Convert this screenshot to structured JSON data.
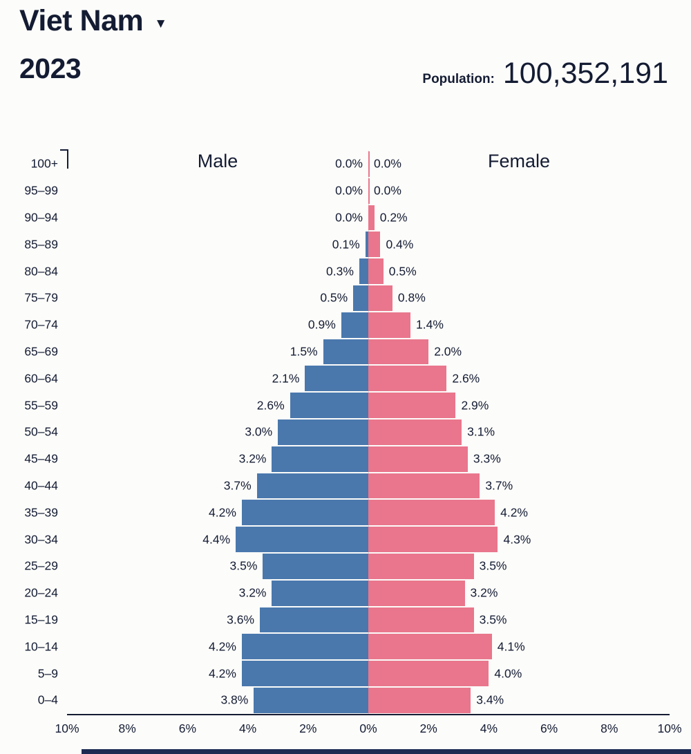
{
  "header": {
    "country": "Viet Nam",
    "dropdown_icon": "▼",
    "year": "2023",
    "population_label": "Population:",
    "population_value": "100,352,191"
  },
  "chart_data": {
    "type": "bar",
    "subtype": "population-pyramid",
    "title": "Viet Nam 2023",
    "male_header": "Male",
    "female_header": "Female",
    "legend_position": "column-headers",
    "grid": false,
    "colors": {
      "male": "#4a78ad",
      "female": "#e9768c",
      "text": "#141c33",
      "center_line": "#dcdcdc",
      "footer_bar": "#1d2b52",
      "background": "#fcfcfa"
    },
    "x_axis": {
      "unit": "%",
      "max_percent": 10,
      "ticks": [
        "10%",
        "8%",
        "6%",
        "4%",
        "2%",
        "0%",
        "2%",
        "4%",
        "6%",
        "8%",
        "10%"
      ]
    },
    "rows": [
      {
        "age": "100+",
        "male": 0.0,
        "female": 0.0,
        "male_label": "0.0%",
        "female_label": "0.0%"
      },
      {
        "age": "95–99",
        "male": 0.0,
        "female": 0.0,
        "male_label": "0.0%",
        "female_label": "0.0%"
      },
      {
        "age": "90–94",
        "male": 0.0,
        "female": 0.2,
        "male_label": "0.0%",
        "female_label": "0.2%"
      },
      {
        "age": "85–89",
        "male": 0.1,
        "female": 0.4,
        "male_label": "0.1%",
        "female_label": "0.4%"
      },
      {
        "age": "80–84",
        "male": 0.3,
        "female": 0.5,
        "male_label": "0.3%",
        "female_label": "0.5%"
      },
      {
        "age": "75–79",
        "male": 0.5,
        "female": 0.8,
        "male_label": "0.5%",
        "female_label": "0.8%"
      },
      {
        "age": "70–74",
        "male": 0.9,
        "female": 1.4,
        "male_label": "0.9%",
        "female_label": "1.4%"
      },
      {
        "age": "65–69",
        "male": 1.5,
        "female": 2.0,
        "male_label": "1.5%",
        "female_label": "2.0%"
      },
      {
        "age": "60–64",
        "male": 2.1,
        "female": 2.6,
        "male_label": "2.1%",
        "female_label": "2.6%"
      },
      {
        "age": "55–59",
        "male": 2.6,
        "female": 2.9,
        "male_label": "2.6%",
        "female_label": "2.9%"
      },
      {
        "age": "50–54",
        "male": 3.0,
        "female": 3.1,
        "male_label": "3.0%",
        "female_label": "3.1%"
      },
      {
        "age": "45–49",
        "male": 3.2,
        "female": 3.3,
        "male_label": "3.2%",
        "female_label": "3.3%"
      },
      {
        "age": "40–44",
        "male": 3.7,
        "female": 3.7,
        "male_label": "3.7%",
        "female_label": "3.7%"
      },
      {
        "age": "35–39",
        "male": 4.2,
        "female": 4.2,
        "male_label": "4.2%",
        "female_label": "4.2%"
      },
      {
        "age": "30–34",
        "male": 4.4,
        "female": 4.3,
        "male_label": "4.4%",
        "female_label": "4.3%"
      },
      {
        "age": "25–29",
        "male": 3.5,
        "female": 3.5,
        "male_label": "3.5%",
        "female_label": "3.5%"
      },
      {
        "age": "20–24",
        "male": 3.2,
        "female": 3.2,
        "male_label": "3.2%",
        "female_label": "3.2%"
      },
      {
        "age": "15–19",
        "male": 3.6,
        "female": 3.5,
        "male_label": "3.6%",
        "female_label": "3.5%"
      },
      {
        "age": "10–14",
        "male": 4.2,
        "female": 4.1,
        "male_label": "4.2%",
        "female_label": "4.1%"
      },
      {
        "age": "5–9",
        "male": 4.2,
        "female": 4.0,
        "male_label": "4.2%",
        "female_label": "4.0%"
      },
      {
        "age": "0–4",
        "male": 3.8,
        "female": 3.4,
        "male_label": "3.8%",
        "female_label": "3.4%"
      }
    ]
  }
}
